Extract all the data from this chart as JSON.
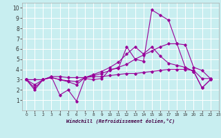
{
  "xlabel": "Windchill (Refroidissement éolien,°C)",
  "background_color": "#c8eef0",
  "grid_color": "#ffffff",
  "line_color": "#990099",
  "xlim": [
    -0.5,
    23
  ],
  "ylim": [
    0,
    10.5
  ],
  "xticks": [
    0,
    1,
    2,
    3,
    4,
    5,
    6,
    7,
    8,
    9,
    10,
    11,
    12,
    13,
    14,
    15,
    16,
    17,
    18,
    19,
    20,
    21,
    22,
    23
  ],
  "yticks": [
    1,
    2,
    3,
    4,
    5,
    6,
    7,
    8,
    9,
    10
  ],
  "series": [
    [
      3.0,
      2.2,
      3.0,
      3.3,
      1.5,
      2.0,
      0.9,
      3.1,
      3.0,
      3.1,
      4.0,
      4.1,
      6.2,
      5.0,
      4.8,
      9.8,
      9.3,
      8.8,
      6.5,
      4.2,
      3.8,
      2.2,
      3.0
    ],
    [
      3.0,
      3.0,
      3.0,
      3.3,
      3.3,
      3.2,
      3.2,
      3.2,
      3.3,
      3.3,
      3.4,
      3.5,
      3.6,
      3.6,
      3.7,
      3.8,
      3.9,
      4.0,
      4.0,
      4.0,
      3.9,
      3.1,
      3.1
    ],
    [
      3.0,
      2.5,
      3.0,
      3.2,
      3.0,
      2.9,
      2.8,
      3.2,
      3.4,
      3.6,
      3.9,
      4.2,
      4.5,
      5.0,
      5.4,
      5.8,
      6.2,
      6.5,
      6.5,
      6.4,
      4.2,
      3.9,
      3.1
    ],
    [
      3.0,
      2.0,
      3.0,
      3.2,
      3.0,
      2.8,
      2.5,
      3.2,
      3.5,
      3.8,
      4.2,
      4.7,
      5.5,
      6.2,
      5.5,
      6.2,
      5.3,
      4.6,
      4.4,
      4.2,
      3.8,
      2.2,
      3.0
    ]
  ]
}
